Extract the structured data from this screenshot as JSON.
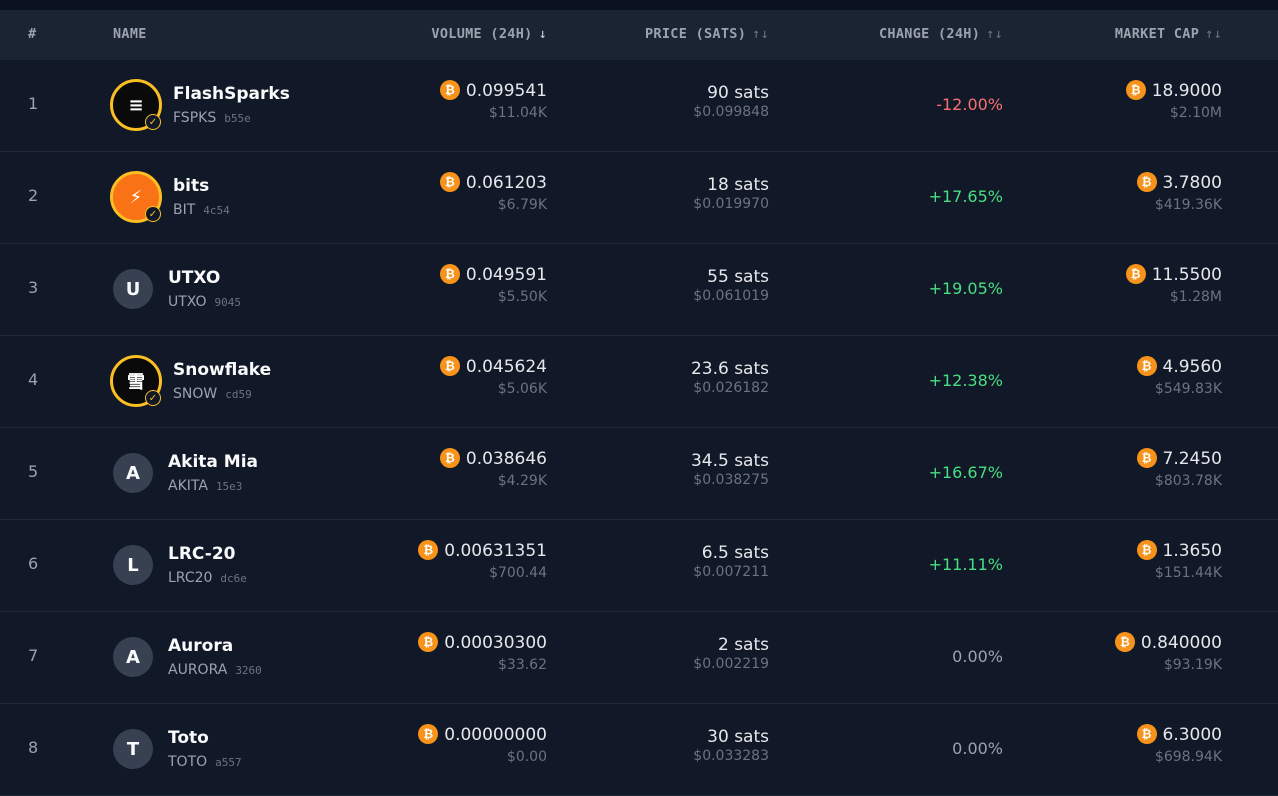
{
  "header": {
    "rank": "#",
    "name": "NAME",
    "volume": "VOLUME (24H)",
    "price": "PRICE (SATS)",
    "change": "CHANGE (24H)",
    "market_cap": "MARKET CAP",
    "sort_active_icon": "↓",
    "sort_icon": "↑↓"
  },
  "colors": {
    "background": "#111827",
    "header_bg": "#1b2433",
    "negative": "#f87171",
    "positive": "#4ade80",
    "btc": "#f7931a",
    "verified": "#fbbf24"
  },
  "rows": [
    {
      "rank": "1",
      "name": "FlashSparks",
      "ticker": "FSPKS",
      "hash": "b55e",
      "avatar": "flashsparks-logo",
      "volume": "0.099541",
      "volume_usd": "$11.04K",
      "price": "90 sats",
      "price_usd": "$0.099848",
      "change": "-12.00%",
      "market_cap": "18.9000",
      "market_cap_usd": "$2.10M"
    },
    {
      "rank": "2",
      "name": "bits",
      "ticker": "BIT",
      "hash": "4c54",
      "avatar": "bits-logo",
      "volume": "0.061203",
      "volume_usd": "$6.79K",
      "price": "18 sats",
      "price_usd": "$0.019970",
      "change": "+17.65%",
      "market_cap": "3.7800",
      "market_cap_usd": "$419.36K"
    },
    {
      "rank": "3",
      "name": "UTXO",
      "ticker": "UTXO",
      "hash": "9045",
      "avatar": "U",
      "volume": "0.049591",
      "volume_usd": "$5.50K",
      "price": "55 sats",
      "price_usd": "$0.061019",
      "change": "+19.05%",
      "market_cap": "11.5500",
      "market_cap_usd": "$1.28M"
    },
    {
      "rank": "4",
      "name": "Snowflake",
      "ticker": "SNOW",
      "hash": "cd59",
      "avatar": "雪",
      "volume": "0.045624",
      "volume_usd": "$5.06K",
      "price": "23.6 sats",
      "price_usd": "$0.026182",
      "change": "+12.38%",
      "market_cap": "4.9560",
      "market_cap_usd": "$549.83K"
    },
    {
      "rank": "5",
      "name": "Akita Mia",
      "ticker": "AKITA",
      "hash": "15e3",
      "avatar": "A",
      "volume": "0.038646",
      "volume_usd": "$4.29K",
      "price": "34.5 sats",
      "price_usd": "$0.038275",
      "change": "+16.67%",
      "market_cap": "7.2450",
      "market_cap_usd": "$803.78K"
    },
    {
      "rank": "6",
      "name": "LRC-20",
      "ticker": "LRC20",
      "hash": "dc6e",
      "avatar": "L",
      "volume": "0.00631351",
      "volume_usd": "$700.44",
      "price": "6.5 sats",
      "price_usd": "$0.007211",
      "change": "+11.11%",
      "market_cap": "1.3650",
      "market_cap_usd": "$151.44K"
    },
    {
      "rank": "7",
      "name": "Aurora",
      "ticker": "AURORA",
      "hash": "3260",
      "avatar": "A",
      "volume": "0.00030300",
      "volume_usd": "$33.62",
      "price": "2 sats",
      "price_usd": "$0.002219",
      "change": "0.00%",
      "market_cap": "0.840000",
      "market_cap_usd": "$93.19K"
    },
    {
      "rank": "8",
      "name": "Toto",
      "ticker": "TOTO",
      "hash": "a557",
      "avatar": "T",
      "volume": "0.00000000",
      "volume_usd": "$0.00",
      "price": "30 sats",
      "price_usd": "$0.033283",
      "change": "0.00%",
      "market_cap": "6.3000",
      "market_cap_usd": "$698.94K"
    }
  ]
}
